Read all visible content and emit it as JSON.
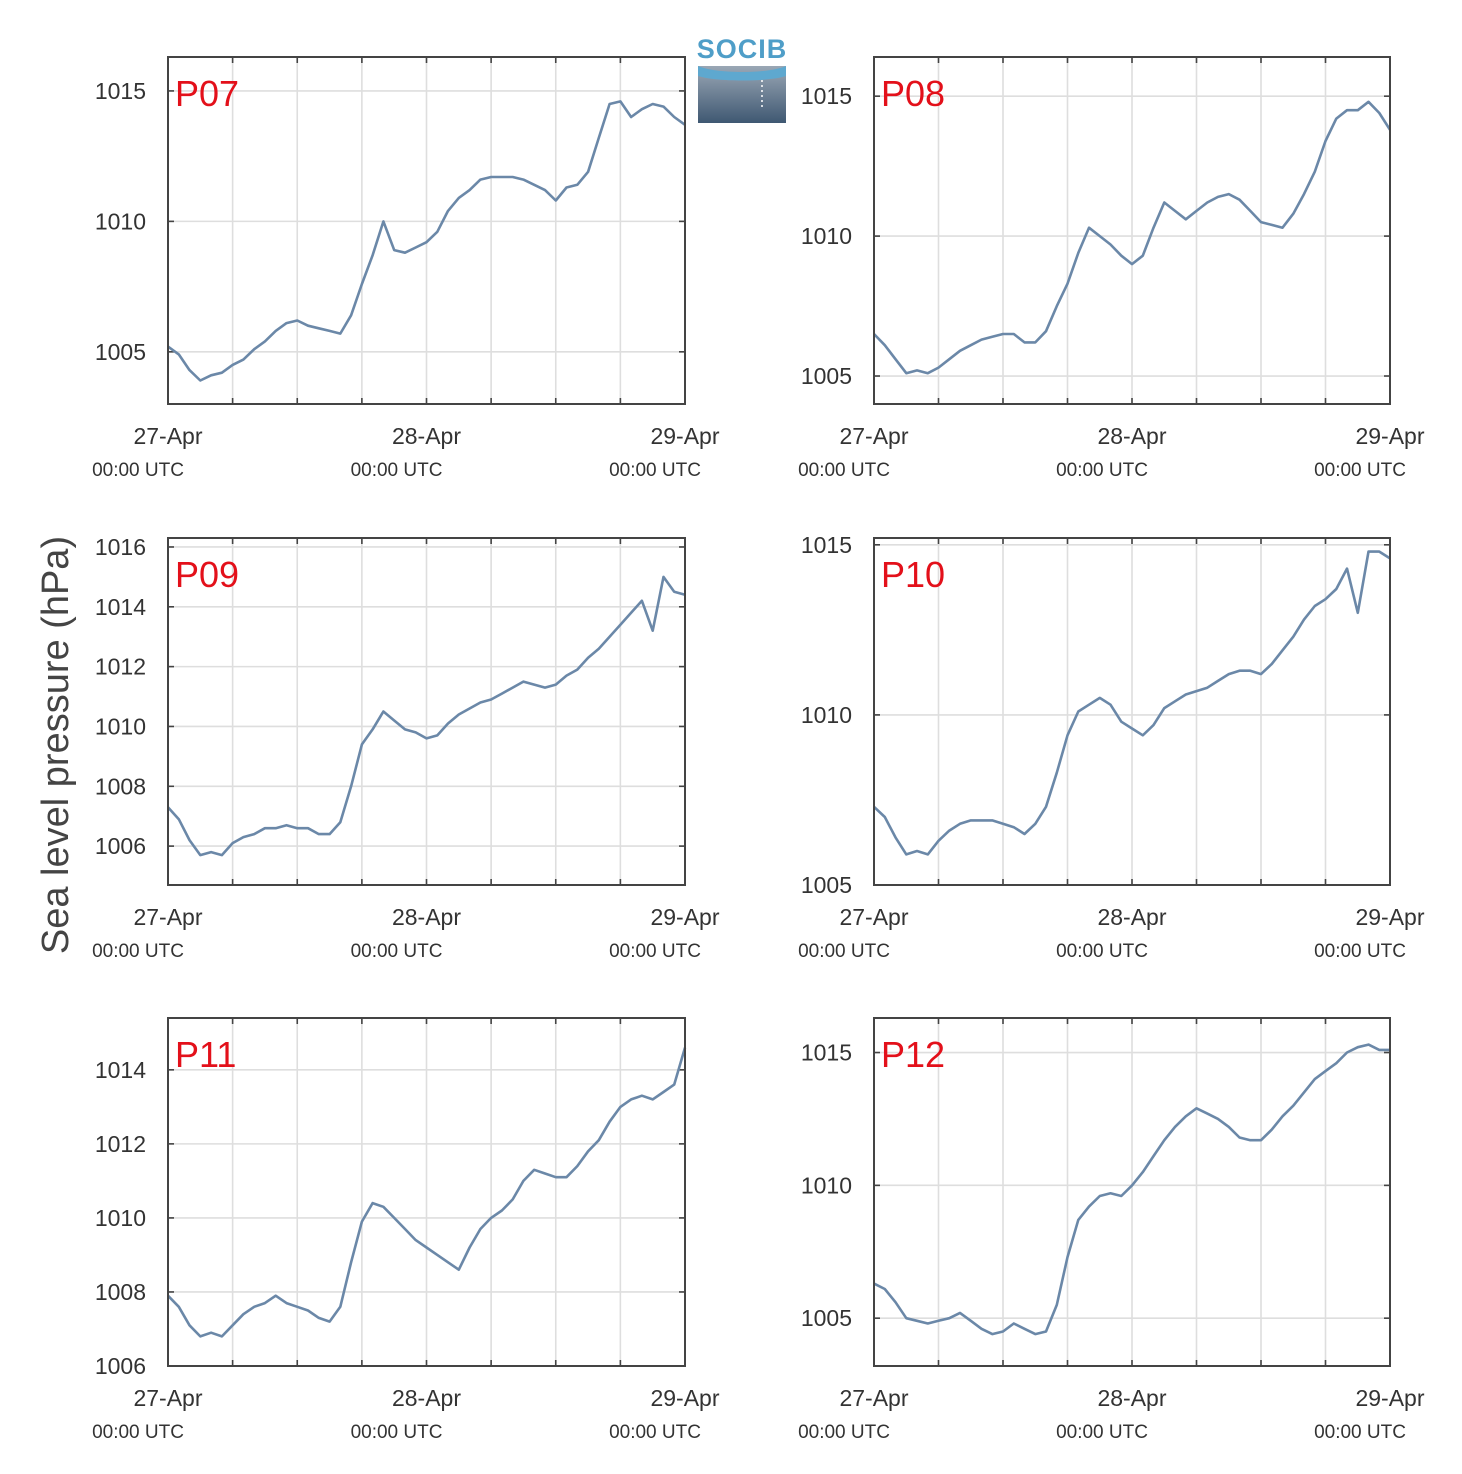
{
  "chart_data": [
    {
      "type": "line",
      "panel_label": "P07",
      "ylim": [
        1003,
        1016.3
      ],
      "yticks": [
        1005,
        1010,
        1015
      ],
      "series": [
        {
          "x": [
            0,
            1,
            2,
            3,
            4,
            5,
            6,
            7,
            8,
            9,
            10,
            11,
            12,
            13,
            14,
            15,
            16,
            17,
            18,
            19,
            20,
            21,
            22,
            23,
            24,
            25,
            26,
            27,
            28,
            29,
            30,
            31,
            32,
            33,
            34,
            35,
            36,
            37,
            38,
            39,
            40,
            41,
            42,
            43,
            44,
            45,
            46,
            47,
            48
          ],
          "y": [
            1005.2,
            1004.9,
            1004.3,
            1003.9,
            1004.1,
            1004.2,
            1004.5,
            1004.7,
            1005.1,
            1005.4,
            1005.8,
            1006.1,
            1006.2,
            1006.0,
            1005.9,
            1005.8,
            1005.7,
            1006.4,
            1007.6,
            1008.7,
            1010.0,
            1008.9,
            1008.8,
            1009.0,
            1009.2,
            1009.6,
            1010.4,
            1010.9,
            1011.2,
            1011.6,
            1011.7,
            1011.7,
            1011.7,
            1011.6,
            1011.4,
            1011.2,
            1010.8,
            1011.3,
            1011.4,
            1011.9,
            1013.2,
            1014.5,
            1014.6,
            1014.0,
            1014.3,
            1014.5,
            1014.4,
            1014.0,
            1013.7
          ]
        }
      ]
    },
    {
      "type": "line",
      "panel_label": "P08",
      "ylim": [
        1004,
        1016.4
      ],
      "yticks": [
        1005,
        1010,
        1015
      ],
      "series": [
        {
          "x": [
            0,
            1,
            2,
            3,
            4,
            5,
            6,
            7,
            8,
            9,
            10,
            11,
            12,
            13,
            14,
            15,
            16,
            17,
            18,
            19,
            20,
            21,
            22,
            23,
            24,
            25,
            26,
            27,
            28,
            29,
            30,
            31,
            32,
            33,
            34,
            35,
            36,
            37,
            38,
            39,
            40,
            41,
            42,
            43,
            44,
            45,
            46,
            47,
            48
          ],
          "y": [
            1006.5,
            1006.1,
            1005.6,
            1005.1,
            1005.2,
            1005.1,
            1005.3,
            1005.6,
            1005.9,
            1006.1,
            1006.3,
            1006.4,
            1006.5,
            1006.5,
            1006.2,
            1006.2,
            1006.6,
            1007.5,
            1008.3,
            1009.4,
            1010.3,
            1010.0,
            1009.7,
            1009.3,
            1009.0,
            1009.3,
            1010.3,
            1011.2,
            1010.9,
            1010.6,
            1010.9,
            1011.2,
            1011.4,
            1011.5,
            1011.3,
            1010.9,
            1010.5,
            1010.4,
            1010.3,
            1010.8,
            1011.5,
            1012.3,
            1013.4,
            1014.2,
            1014.5,
            1014.5,
            1014.8,
            1014.4,
            1013.8
          ]
        }
      ]
    },
    {
      "type": "line",
      "panel_label": "P09",
      "ylim": [
        1004.7,
        1016.3
      ],
      "yticks": [
        1006,
        1008,
        1010,
        1012,
        1014,
        1016
      ],
      "series": [
        {
          "x": [
            0,
            1,
            2,
            3,
            4,
            5,
            6,
            7,
            8,
            9,
            10,
            11,
            12,
            13,
            14,
            15,
            16,
            17,
            18,
            19,
            20,
            21,
            22,
            23,
            24,
            25,
            26,
            27,
            28,
            29,
            30,
            31,
            32,
            33,
            34,
            35,
            36,
            37,
            38,
            39,
            40,
            41,
            42,
            43,
            44,
            45,
            46,
            47,
            48
          ],
          "y": [
            1007.3,
            1006.9,
            1006.2,
            1005.7,
            1005.8,
            1005.7,
            1006.1,
            1006.3,
            1006.4,
            1006.6,
            1006.6,
            1006.7,
            1006.6,
            1006.6,
            1006.4,
            1006.4,
            1006.8,
            1008.0,
            1009.4,
            1009.9,
            1010.5,
            1010.2,
            1009.9,
            1009.8,
            1009.6,
            1009.7,
            1010.1,
            1010.4,
            1010.6,
            1010.8,
            1010.9,
            1011.1,
            1011.3,
            1011.5,
            1011.4,
            1011.3,
            1011.4,
            1011.7,
            1011.9,
            1012.3,
            1012.6,
            1013.0,
            1013.4,
            1013.8,
            1014.2,
            1013.2,
            1015.0,
            1014.5,
            1014.4
          ]
        }
      ]
    },
    {
      "type": "line",
      "panel_label": "P10",
      "ylim": [
        1005,
        1015.2
      ],
      "yticks": [
        1005,
        1010,
        1015
      ],
      "series": [
        {
          "x": [
            0,
            1,
            2,
            3,
            4,
            5,
            6,
            7,
            8,
            9,
            10,
            11,
            12,
            13,
            14,
            15,
            16,
            17,
            18,
            19,
            20,
            21,
            22,
            23,
            24,
            25,
            26,
            27,
            28,
            29,
            30,
            31,
            32,
            33,
            34,
            35,
            36,
            37,
            38,
            39,
            40,
            41,
            42,
            43,
            44,
            45,
            46,
            47,
            48
          ],
          "y": [
            1007.3,
            1007.0,
            1006.4,
            1005.9,
            1006.0,
            1005.9,
            1006.3,
            1006.6,
            1006.8,
            1006.9,
            1006.9,
            1006.9,
            1006.8,
            1006.7,
            1006.5,
            1006.8,
            1007.3,
            1008.3,
            1009.4,
            1010.1,
            1010.3,
            1010.5,
            1010.3,
            1009.8,
            1009.6,
            1009.4,
            1009.7,
            1010.2,
            1010.4,
            1010.6,
            1010.7,
            1010.8,
            1011.0,
            1011.2,
            1011.3,
            1011.3,
            1011.2,
            1011.5,
            1011.9,
            1012.3,
            1012.8,
            1013.2,
            1013.4,
            1013.7,
            1014.3,
            1013.0,
            1014.8,
            1014.8,
            1014.6
          ]
        }
      ]
    },
    {
      "type": "line",
      "panel_label": "P11",
      "ylim": [
        1006,
        1015.4
      ],
      "yticks": [
        1006,
        1008,
        1010,
        1012,
        1014
      ],
      "series": [
        {
          "x": [
            0,
            1,
            2,
            3,
            4,
            5,
            6,
            7,
            8,
            9,
            10,
            11,
            12,
            13,
            14,
            15,
            16,
            17,
            18,
            19,
            20,
            21,
            22,
            23,
            24,
            25,
            26,
            27,
            28,
            29,
            30,
            31,
            32,
            33,
            34,
            35,
            36,
            37,
            38,
            39,
            40,
            41,
            42,
            43,
            44,
            45,
            46,
            47,
            48
          ],
          "y": [
            1007.9,
            1007.6,
            1007.1,
            1006.8,
            1006.9,
            1006.8,
            1007.1,
            1007.4,
            1007.6,
            1007.7,
            1007.9,
            1007.7,
            1007.6,
            1007.5,
            1007.3,
            1007.2,
            1007.6,
            1008.8,
            1009.9,
            1010.4,
            1010.3,
            1010.0,
            1009.7,
            1009.4,
            1009.2,
            1009.0,
            1008.8,
            1008.6,
            1009.2,
            1009.7,
            1010.0,
            1010.2,
            1010.5,
            1011.0,
            1011.3,
            1011.2,
            1011.1,
            1011.1,
            1011.4,
            1011.8,
            1012.1,
            1012.6,
            1013.0,
            1013.2,
            1013.3,
            1013.2,
            1013.4,
            1013.6,
            1014.6
          ]
        }
      ]
    },
    {
      "type": "line",
      "panel_label": "P12",
      "ylim": [
        1003.2,
        1016.3
      ],
      "yticks": [
        1005,
        1010,
        1015
      ],
      "series": [
        {
          "x": [
            0,
            1,
            2,
            3,
            4,
            5,
            6,
            7,
            8,
            9,
            10,
            11,
            12,
            13,
            14,
            15,
            16,
            17,
            18,
            19,
            20,
            21,
            22,
            23,
            24,
            25,
            26,
            27,
            28,
            29,
            30,
            31,
            32,
            33,
            34,
            35,
            36,
            37,
            38,
            39,
            40,
            41,
            42,
            43,
            44,
            45,
            46,
            47,
            48
          ],
          "y": [
            1006.3,
            1006.1,
            1005.6,
            1005.0,
            1004.9,
            1004.8,
            1004.9,
            1005.0,
            1005.2,
            1004.9,
            1004.6,
            1004.4,
            1004.5,
            1004.8,
            1004.6,
            1004.4,
            1004.5,
            1005.5,
            1007.3,
            1008.7,
            1009.2,
            1009.6,
            1009.7,
            1009.6,
            1010.0,
            1010.5,
            1011.1,
            1011.7,
            1012.2,
            1012.6,
            1012.9,
            1012.7,
            1012.5,
            1012.2,
            1011.8,
            1011.7,
            1011.7,
            1012.1,
            1012.6,
            1013.0,
            1013.5,
            1014.0,
            1014.3,
            1014.6,
            1015.0,
            1015.2,
            1015.3,
            1015.1,
            1015.1
          ]
        }
      ]
    }
  ],
  "x_axis": {
    "ticks": [
      {
        "x": 0,
        "date": "27-Apr",
        "time": "00:00 UTC"
      },
      {
        "x": 24,
        "date": "28-Apr",
        "time": "00:00 UTC"
      },
      {
        "x": 48,
        "date": "29-Apr",
        "time": "00:00 UTC"
      }
    ],
    "minor_ticks": [
      6,
      12,
      18,
      30,
      36,
      42
    ],
    "xlim": [
      0,
      48
    ],
    "grid": true
  },
  "ylabel": "Sea level pressure (hPa)",
  "logo": {
    "text": "SOCIB"
  },
  "colors": {
    "series": "#6b88a8",
    "panel_label": "#e3101a",
    "grid": "#dedede",
    "frame": "#444444"
  }
}
